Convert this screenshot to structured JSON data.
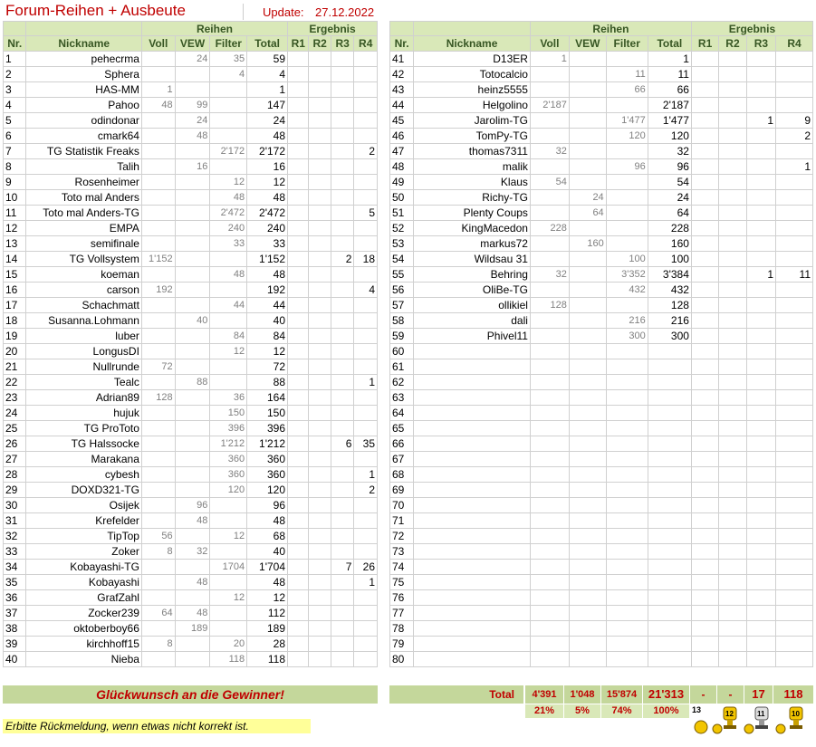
{
  "header": {
    "title": "Forum-Reihen + Ausbeute",
    "update_label": "Update:",
    "update_date": "27.12.2022"
  },
  "columns": {
    "group_reihen": "Reihen",
    "group_ergebnis": "Ergebnis",
    "nr": "Nr.",
    "nickname": "Nickname",
    "voll": "Voll",
    "vew": "VEW",
    "filter": "Filter",
    "total": "Total",
    "r1": "R1",
    "r2": "R2",
    "r3": "R3",
    "r4": "R4"
  },
  "left_rows": [
    [
      "1",
      "pehecrma",
      "",
      "24",
      "35",
      "59",
      "",
      "",
      "",
      ""
    ],
    [
      "2",
      "Sphera",
      "",
      "",
      "4",
      "4",
      "",
      "",
      "",
      ""
    ],
    [
      "3",
      "HAS-MM",
      "1",
      "",
      "",
      "1",
      "",
      "",
      "",
      ""
    ],
    [
      "4",
      "Pahoo",
      "48",
      "99",
      "",
      "147",
      "",
      "",
      "",
      ""
    ],
    [
      "5",
      "odindonar",
      "",
      "24",
      "",
      "24",
      "",
      "",
      "",
      ""
    ],
    [
      "6",
      "cmark64",
      "",
      "48",
      "",
      "48",
      "",
      "",
      "",
      ""
    ],
    [
      "7",
      "TG Statistik Freaks",
      "",
      "",
      "2'172",
      "2'172",
      "",
      "",
      "",
      "2"
    ],
    [
      "8",
      "Talih",
      "",
      "16",
      "",
      "16",
      "",
      "",
      "",
      ""
    ],
    [
      "9",
      "Rosenheimer",
      "",
      "",
      "12",
      "12",
      "",
      "",
      "",
      ""
    ],
    [
      "10",
      "Toto mal Anders",
      "",
      "",
      "48",
      "48",
      "",
      "",
      "",
      ""
    ],
    [
      "11",
      "Toto mal Anders-TG",
      "",
      "",
      "2'472",
      "2'472",
      "",
      "",
      "",
      "5"
    ],
    [
      "12",
      "EMPA",
      "",
      "",
      "240",
      "240",
      "",
      "",
      "",
      ""
    ],
    [
      "13",
      "semifinale",
      "",
      "",
      "33",
      "33",
      "",
      "",
      "",
      ""
    ],
    [
      "14",
      "TG Vollsystem",
      "1'152",
      "",
      "",
      "1'152",
      "",
      "",
      "2",
      "18"
    ],
    [
      "15",
      "koeman",
      "",
      "",
      "48",
      "48",
      "",
      "",
      "",
      ""
    ],
    [
      "16",
      "carson",
      "192",
      "",
      "",
      "192",
      "",
      "",
      "",
      "4"
    ],
    [
      "17",
      "Schachmatt",
      "",
      "",
      "44",
      "44",
      "",
      "",
      "",
      ""
    ],
    [
      "18",
      "Susanna.Lohmann",
      "",
      "40",
      "",
      "40",
      "",
      "",
      "",
      ""
    ],
    [
      "19",
      "luber",
      "",
      "",
      "84",
      "84",
      "",
      "",
      "",
      ""
    ],
    [
      "20",
      "LongusDI",
      "",
      "",
      "12",
      "12",
      "",
      "",
      "",
      ""
    ],
    [
      "21",
      "Nullrunde",
      "72",
      "",
      "",
      "72",
      "",
      "",
      "",
      ""
    ],
    [
      "22",
      "Tealc",
      "",
      "88",
      "",
      "88",
      "",
      "",
      "",
      "1"
    ],
    [
      "23",
      "Adrian89",
      "128",
      "",
      "36",
      "164",
      "",
      "",
      "",
      ""
    ],
    [
      "24",
      "hujuk",
      "",
      "",
      "150",
      "150",
      "",
      "",
      "",
      ""
    ],
    [
      "25",
      "TG ProToto",
      "",
      "",
      "396",
      "396",
      "",
      "",
      "",
      ""
    ],
    [
      "26",
      "TG Halssocke",
      "",
      "",
      "1'212",
      "1'212",
      "",
      "",
      "6",
      "35"
    ],
    [
      "27",
      "Marakana",
      "",
      "",
      "360",
      "360",
      "",
      "",
      "",
      ""
    ],
    [
      "28",
      "cybesh",
      "",
      "",
      "360",
      "360",
      "",
      "",
      "",
      "1"
    ],
    [
      "29",
      "DOXD321-TG",
      "",
      "",
      "120",
      "120",
      "",
      "",
      "",
      "2"
    ],
    [
      "30",
      "Osijek",
      "",
      "96",
      "",
      "96",
      "",
      "",
      "",
      ""
    ],
    [
      "31",
      "Krefelder",
      "",
      "48",
      "",
      "48",
      "",
      "",
      "",
      ""
    ],
    [
      "32",
      "TipTop",
      "56",
      "",
      "12",
      "68",
      "",
      "",
      "",
      ""
    ],
    [
      "33",
      "Zoker",
      "8",
      "32",
      "",
      "40",
      "",
      "",
      "",
      ""
    ],
    [
      "34",
      "Kobayashi-TG",
      "",
      "",
      "1704",
      "1'704",
      "",
      "",
      "7",
      "26"
    ],
    [
      "35",
      "Kobayashi",
      "",
      "48",
      "",
      "48",
      "",
      "",
      "",
      "1"
    ],
    [
      "36",
      "GrafZahl",
      "",
      "",
      "12",
      "12",
      "",
      "",
      "",
      ""
    ],
    [
      "37",
      "Zocker239",
      "64",
      "48",
      "",
      "112",
      "",
      "",
      "",
      ""
    ],
    [
      "38",
      "oktoberboy66",
      "",
      "189",
      "",
      "189",
      "",
      "",
      "",
      ""
    ],
    [
      "39",
      "kirchhoff15",
      "8",
      "",
      "20",
      "28",
      "",
      "",
      "",
      ""
    ],
    [
      "40",
      "Nieba",
      "",
      "",
      "118",
      "118",
      "",
      "",
      "",
      ""
    ]
  ],
  "right_rows": [
    [
      "41",
      "D13ER",
      "1",
      "",
      "",
      "1",
      "",
      "",
      "",
      ""
    ],
    [
      "42",
      "Totocalcio",
      "",
      "",
      "11",
      "11",
      "",
      "",
      "",
      ""
    ],
    [
      "43",
      "heinz5555",
      "",
      "",
      "66",
      "66",
      "",
      "",
      "",
      ""
    ],
    [
      "44",
      "Helgolino",
      "2'187",
      "",
      "",
      "2'187",
      "",
      "",
      "",
      ""
    ],
    [
      "45",
      "Jarolim-TG",
      "",
      "",
      "1'477",
      "1'477",
      "",
      "",
      "1",
      "9"
    ],
    [
      "46",
      "TomPy-TG",
      "",
      "",
      "120",
      "120",
      "",
      "",
      "",
      "2"
    ],
    [
      "47",
      "thomas7311",
      "32",
      "",
      "",
      "32",
      "",
      "",
      "",
      ""
    ],
    [
      "48",
      "malik",
      "",
      "",
      "96",
      "96",
      "",
      "",
      "",
      "1"
    ],
    [
      "49",
      "Klaus",
      "54",
      "",
      "",
      "54",
      "",
      "",
      "",
      ""
    ],
    [
      "50",
      "Richy-TG",
      "",
      "24",
      "",
      "24",
      "",
      "",
      "",
      ""
    ],
    [
      "51",
      "Plenty Coups",
      "",
      "64",
      "",
      "64",
      "",
      "",
      "",
      ""
    ],
    [
      "52",
      "KingMacedon",
      "228",
      "",
      "",
      "228",
      "",
      "",
      "",
      ""
    ],
    [
      "53",
      "markus72",
      "",
      "160",
      "",
      "160",
      "",
      "",
      "",
      ""
    ],
    [
      "54",
      "Wildsau 31",
      "",
      "",
      "100",
      "100",
      "",
      "",
      "",
      ""
    ],
    [
      "55",
      "Behring",
      "32",
      "",
      "3'352",
      "3'384",
      "",
      "",
      "1",
      "11"
    ],
    [
      "56",
      "OliBe-TG",
      "",
      "",
      "432",
      "432",
      "",
      "",
      "",
      ""
    ],
    [
      "57",
      "ollikiel",
      "128",
      "",
      "",
      "128",
      "",
      "",
      "",
      ""
    ],
    [
      "58",
      "dali",
      "",
      "",
      "216",
      "216",
      "",
      "",
      "",
      ""
    ],
    [
      "59",
      "Phivel11",
      "",
      "",
      "300",
      "300",
      "",
      "",
      "",
      ""
    ],
    [
      "60",
      "",
      "",
      "",
      "",
      "",
      "",
      "",
      "",
      ""
    ],
    [
      "61",
      "",
      "",
      "",
      "",
      "",
      "",
      "",
      "",
      ""
    ],
    [
      "62",
      "",
      "",
      "",
      "",
      "",
      "",
      "",
      "",
      ""
    ],
    [
      "63",
      "",
      "",
      "",
      "",
      "",
      "",
      "",
      "",
      ""
    ],
    [
      "64",
      "",
      "",
      "",
      "",
      "",
      "",
      "",
      "",
      ""
    ],
    [
      "65",
      "",
      "",
      "",
      "",
      "",
      "",
      "",
      "",
      ""
    ],
    [
      "66",
      "",
      "",
      "",
      "",
      "",
      "",
      "",
      "",
      ""
    ],
    [
      "67",
      "",
      "",
      "",
      "",
      "",
      "",
      "",
      "",
      ""
    ],
    [
      "68",
      "",
      "",
      "",
      "",
      "",
      "",
      "",
      "",
      ""
    ],
    [
      "69",
      "",
      "",
      "",
      "",
      "",
      "",
      "",
      "",
      ""
    ],
    [
      "70",
      "",
      "",
      "",
      "",
      "",
      "",
      "",
      "",
      ""
    ],
    [
      "71",
      "",
      "",
      "",
      "",
      "",
      "",
      "",
      "",
      ""
    ],
    [
      "72",
      "",
      "",
      "",
      "",
      "",
      "",
      "",
      "",
      ""
    ],
    [
      "73",
      "",
      "",
      "",
      "",
      "",
      "",
      "",
      "",
      ""
    ],
    [
      "74",
      "",
      "",
      "",
      "",
      "",
      "",
      "",
      "",
      ""
    ],
    [
      "75",
      "",
      "",
      "",
      "",
      "",
      "",
      "",
      "",
      ""
    ],
    [
      "76",
      "",
      "",
      "",
      "",
      "",
      "",
      "",
      "",
      ""
    ],
    [
      "77",
      "",
      "",
      "",
      "",
      "",
      "",
      "",
      "",
      ""
    ],
    [
      "78",
      "",
      "",
      "",
      "",
      "",
      "",
      "",
      "",
      ""
    ],
    [
      "79",
      "",
      "",
      "",
      "",
      "",
      "",
      "",
      "",
      ""
    ],
    [
      "80",
      "",
      "",
      "",
      "",
      "",
      "",
      "",
      "",
      ""
    ]
  ],
  "footer": {
    "congrats": "Glückwunsch an die Gewinner!",
    "total_label": "Total",
    "totals": {
      "voll": "4'391",
      "vew": "1'048",
      "filter": "15'874",
      "total": "21'313",
      "r1": "-",
      "r2": "-",
      "r3": "17",
      "r4": "118"
    },
    "percents": {
      "voll": "21%",
      "vew": "5%",
      "filter": "74%",
      "total": "100%"
    },
    "trophy_labels": [
      "13",
      "12",
      "11",
      "10"
    ],
    "note": "Erbitte Rückmeldung, wenn etwas nicht korrekt ist."
  }
}
